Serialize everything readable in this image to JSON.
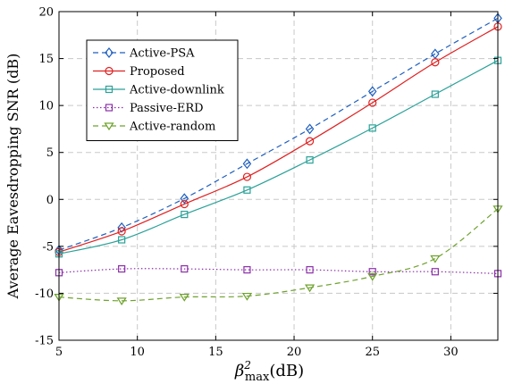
{
  "chart_data": {
    "type": "line",
    "title": "",
    "xlabel_base": "β",
    "xlabel_sup": "2",
    "xlabel_sub": "max",
    "xlabel_unit": "(dB)",
    "ylabel": "Average Eavesdropping SNR (dB)",
    "xlim": [
      5,
      33
    ],
    "ylim": [
      -15,
      20
    ],
    "xticks": [
      5,
      10,
      15,
      20,
      25,
      30
    ],
    "yticks": [
      -15,
      -10,
      -5,
      0,
      5,
      10,
      15,
      20
    ],
    "grid": true,
    "legend_position": "top-left",
    "x": [
      5,
      9,
      13,
      17,
      21,
      25,
      29,
      33
    ],
    "series": [
      {
        "name": "Active-PSA",
        "color": "#1f5fbf",
        "dash": "6,4",
        "marker": "diamond",
        "values": [
          -5.4,
          -3.0,
          0.1,
          3.8,
          7.5,
          11.5,
          15.5,
          19.3
        ]
      },
      {
        "name": "Proposed",
        "color": "#e02020",
        "dash": "",
        "marker": "circle",
        "values": [
          -5.6,
          -3.4,
          -0.5,
          2.4,
          6.2,
          10.3,
          14.6,
          18.4
        ]
      },
      {
        "name": "Active-downlink",
        "color": "#2aa198",
        "dash": "",
        "marker": "square",
        "values": [
          -5.8,
          -4.3,
          -1.6,
          1.0,
          4.2,
          7.6,
          11.2,
          14.8
        ]
      },
      {
        "name": "Passive-ERD",
        "color": "#8b2fa8",
        "dash": "1.5,2.5",
        "marker": "square",
        "values": [
          -7.8,
          -7.4,
          -7.4,
          -7.5,
          -7.5,
          -7.7,
          -7.7,
          -7.9
        ]
      },
      {
        "name": "Active-random",
        "color": "#6fa22e",
        "dash": "6,4",
        "marker": "triangle-down",
        "values": [
          -10.4,
          -10.8,
          -10.4,
          -10.3,
          -9.4,
          -8.2,
          -6.3,
          -1.0
        ]
      }
    ]
  }
}
